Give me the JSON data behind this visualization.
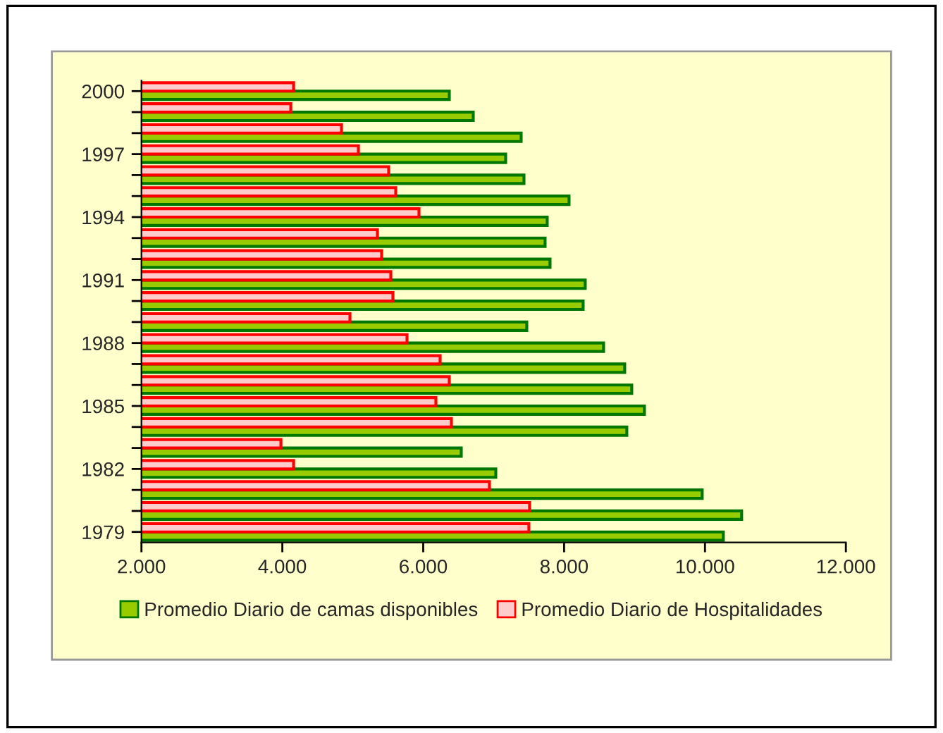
{
  "chart_data": {
    "type": "bar",
    "orientation": "horizontal",
    "categories": [
      "2000",
      null,
      null,
      "1997",
      null,
      null,
      "1994",
      null,
      null,
      "1991",
      null,
      null,
      "1988",
      null,
      null,
      "1985",
      null,
      null,
      "1982",
      null,
      null,
      "1979"
    ],
    "series": [
      {
        "name": "Promedio Diario de camas disponibles",
        "color": "#99cc00",
        "values": [
          6370,
          6710,
          7390,
          7170,
          7430,
          8070,
          7760,
          7730,
          7800,
          8300,
          8270,
          7470,
          8560,
          8860,
          8960,
          9140,
          8890,
          6540,
          7030,
          9960,
          10520,
          10260
        ]
      },
      {
        "name": "Promedio Diario de Hospitalidades",
        "color": "#ffcccc",
        "values": [
          4160,
          4120,
          4840,
          5080,
          5510,
          5610,
          5940,
          5350,
          5410,
          5540,
          5570,
          4960,
          5770,
          6240,
          6370,
          6180,
          6400,
          3980,
          4160,
          6940,
          7510,
          7500
        ]
      }
    ],
    "xlim": [
      2000,
      12000
    ],
    "xticks": [
      {
        "value": 2000,
        "label": "2.000"
      },
      {
        "value": 4000,
        "label": "4.000"
      },
      {
        "value": 6000,
        "label": "6.000"
      },
      {
        "value": 8000,
        "label": "8.000"
      },
      {
        "value": 10000,
        "label": "10.000"
      },
      {
        "value": 12000,
        "label": "12.000"
      }
    ],
    "grid": false,
    "legend": "bottom"
  }
}
